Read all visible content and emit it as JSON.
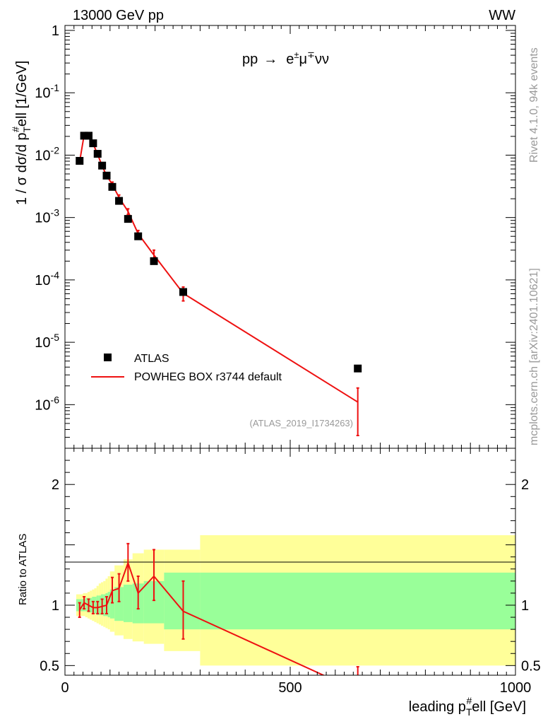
{
  "header": {
    "left": "13000 GeV pp",
    "right": "WW"
  },
  "side": {
    "rivet": "Rivet 4.1.0, 94k events",
    "mcplots": "mcplots.cern.ch [arXiv:2401.10621]"
  },
  "process": {
    "pp": "pp",
    "arrow": "→",
    "e": "e",
    "pm": "±",
    "mu": "μ",
    "mp": "∓",
    "nunu": "νν"
  },
  "analysis": "(ATLAS_2019_I1734263)",
  "ylabel": {
    "a": "1 / σ  dσ/d p",
    "T": "T",
    "hash": "#",
    "b": "ell [1/GeV]"
  },
  "xlabel": {
    "a": "leading p",
    "T": "T",
    "hash": "#",
    "b": "ell [GeV]"
  },
  "ratio_label": "Ratio to ATLAS",
  "legend": {
    "data": "ATLAS",
    "mc": "POWHEG BOX r3744 default"
  },
  "colors": {
    "mc": "#ee1111",
    "band1": "#99ff99",
    "band2": "#ffff99",
    "data": "#000000"
  },
  "chart_data": [
    {
      "type": "scatter",
      "title": "pp → e±μ∓νν",
      "xlabel": "leading pT#ell [GeV]",
      "ylabel": "1 / σ dσ/d pT#ell [1/GeV]",
      "xlim": [
        0,
        1000
      ],
      "ylim": [
        2e-07,
        1.2
      ],
      "yscale": "log",
      "yticks": [
        {
          "e": "0",
          "label": "1"
        },
        {
          "e": "-1",
          "label": "10"
        },
        {
          "e": "-2",
          "label": "10"
        },
        {
          "e": "-3",
          "label": "10"
        },
        {
          "e": "-4",
          "label": "10"
        },
        {
          "e": "-5",
          "label": "10"
        },
        {
          "e": "-6",
          "label": "10"
        }
      ],
      "series": [
        {
          "name": "ATLAS",
          "x": [
            32.5,
            42.5,
            52.5,
            62.5,
            72.5,
            82.5,
            92.5,
            105,
            120,
            140,
            162.5,
            197.5,
            262.5,
            650
          ],
          "y": [
            0.0081,
            0.0205,
            0.0205,
            0.0155,
            0.0105,
            0.0068,
            0.0047,
            0.0031,
            0.00185,
            0.00095,
            0.0005,
            0.0002,
            6.4e-05,
            3.8e-06
          ]
        },
        {
          "name": "POWHEG BOX r3744 default",
          "x": [
            32.5,
            42.5,
            52.5,
            62.5,
            72.5,
            82.5,
            92.5,
            105,
            120,
            140,
            162.5,
            197.5,
            262.5,
            650
          ],
          "y": [
            0.0078,
            0.021,
            0.0205,
            0.0152,
            0.0103,
            0.0067,
            0.0047,
            0.0034,
            0.0021,
            0.00125,
            0.00055,
            0.00025,
            6.1e-05,
            1.1e-06
          ],
          "err_lo": [
            0.0005,
            0.0009,
            0.0008,
            0.0007,
            0.0005,
            0.0004,
            0.0003,
            0.0003,
            0.0002,
            0.00013,
            7e-05,
            4e-05,
            1.5e-05,
            7.8e-07
          ],
          "err_hi": [
            0.0005,
            0.0009,
            0.0008,
            0.0007,
            0.0005,
            0.0004,
            0.0003,
            0.0003,
            0.0002,
            0.00013,
            7e-05,
            5e-05,
            1.6e-05,
            7.5e-07
          ]
        }
      ]
    },
    {
      "type": "line",
      "ylabel": "Ratio to ATLAS",
      "xlim": [
        0,
        1000
      ],
      "ylim": [
        0.42,
        2.3
      ],
      "yticks": [
        {
          "v": 0.5,
          "label": "0.5"
        },
        {
          "v": 1,
          "label": "1"
        },
        {
          "v": 2,
          "label": "2"
        }
      ],
      "xticks": [
        {
          "v": 0,
          "label": "0"
        },
        {
          "v": 500,
          "label": "500"
        },
        {
          "v": 1000,
          "label": "1000"
        }
      ],
      "bins": [
        25,
        40,
        45,
        50,
        55,
        60,
        65,
        70,
        75,
        80,
        85,
        90,
        95,
        100,
        110,
        130,
        150,
        175,
        220,
        300,
        1000
      ],
      "bands": [
        {
          "name": "stat",
          "lo": [
            0.95,
            0.95,
            0.95,
            0.94,
            0.94,
            0.93,
            0.93,
            0.92,
            0.92,
            0.92,
            0.91,
            0.91,
            0.9,
            0.89,
            0.87,
            0.86,
            0.85,
            0.85,
            0.8,
            0.8
          ],
          "hi": [
            1.05,
            1.05,
            1.06,
            1.06,
            1.06,
            1.07,
            1.07,
            1.08,
            1.08,
            1.09,
            1.09,
            1.1,
            1.11,
            1.13,
            1.15,
            1.17,
            1.18,
            1.2,
            1.27,
            1.27
          ]
        },
        {
          "name": "total",
          "lo": [
            0.91,
            0.91,
            0.9,
            0.89,
            0.88,
            0.87,
            0.86,
            0.85,
            0.84,
            0.83,
            0.82,
            0.81,
            0.8,
            0.78,
            0.75,
            0.72,
            0.7,
            0.68,
            0.62,
            0.5
          ],
          "hi": [
            1.09,
            1.1,
            1.1,
            1.11,
            1.12,
            1.13,
            1.14,
            1.16,
            1.18,
            1.19,
            1.2,
            1.22,
            1.24,
            1.28,
            1.33,
            1.38,
            1.43,
            1.46,
            1.46,
            1.58
          ]
        }
      ],
      "series": [
        {
          "name": "POWHEG BOX r3744 default",
          "x": [
            32.5,
            42.5,
            52.5,
            62.5,
            72.5,
            82.5,
            92.5,
            105,
            120,
            140,
            162.5,
            197.5,
            262.5,
            650
          ],
          "y": [
            0.96,
            1.02,
            1.0,
            0.98,
            0.98,
            0.99,
            1.0,
            1.12,
            1.14,
            1.35,
            1.1,
            1.24,
            0.95,
            0.29
          ],
          "err_lo": [
            0.06,
            0.05,
            0.05,
            0.05,
            0.05,
            0.06,
            0.07,
            0.1,
            0.11,
            0.15,
            0.13,
            0.2,
            0.23,
            0.2
          ],
          "err_hi": [
            0.06,
            0.05,
            0.05,
            0.05,
            0.05,
            0.06,
            0.07,
            0.11,
            0.12,
            0.16,
            0.14,
            0.22,
            0.25,
            0.2
          ]
        }
      ]
    }
  ]
}
